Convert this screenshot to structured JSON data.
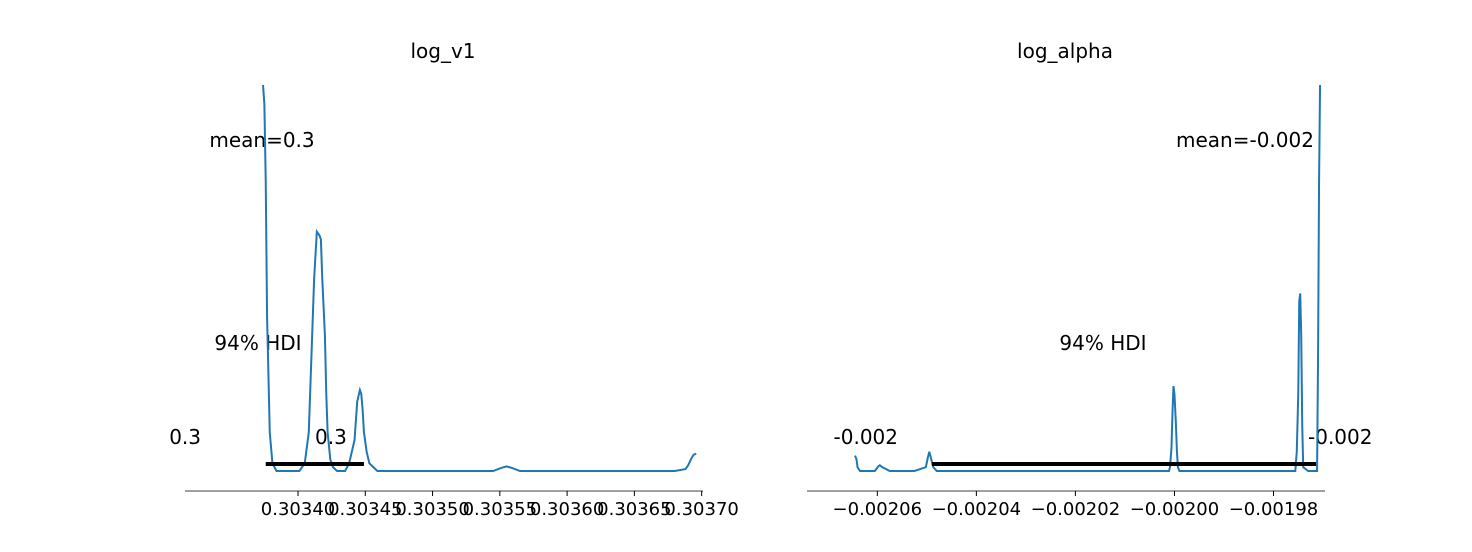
{
  "chart_data": [
    {
      "type": "line",
      "title": "log_v1",
      "mean_label": "mean=0.3",
      "hdi_label": "94% HDI",
      "hdi_low_label": "0.3",
      "hdi_high_label": "0.3",
      "hdi": [
        0.303376,
        0.303449
      ],
      "xlim": [
        0.303316,
        0.303701
      ],
      "x_ticks": [
        0.3034,
        0.30345,
        0.3035,
        0.30355,
        0.3036,
        0.30365,
        0.3037
      ],
      "x_tick_labels": [
        "0.30340",
        "0.30345",
        "0.30350",
        "0.30355",
        "0.30360",
        "0.30365",
        "0.30370"
      ],
      "series": [
        {
          "x": [
            0.303374,
            0.303375,
            0.303376,
            0.303377,
            0.303379,
            0.303381,
            0.303384,
            0.303387,
            0.30339,
            0.303393,
            0.303396,
            0.303399,
            0.303401,
            0.303405,
            0.303408,
            0.30341,
            0.303412,
            0.303414,
            0.303416,
            0.303417,
            0.303418,
            0.30342,
            0.303421,
            0.303422,
            0.303424,
            0.303426,
            0.303429,
            0.303432,
            0.303435,
            0.303438,
            0.303442,
            0.303444,
            0.303446,
            0.303447,
            0.303448,
            0.303449,
            0.303451,
            0.303453,
            0.303456,
            0.303459,
            0.303464,
            0.30348,
            0.3035,
            0.303515,
            0.30353,
            0.303545,
            0.303551,
            0.303555,
            0.303559,
            0.303565,
            0.30358,
            0.3036,
            0.30362,
            0.30364,
            0.30366,
            0.30368,
            0.303688,
            0.30369,
            0.303692,
            0.303694,
            0.303696
          ],
          "y": [
            1.0,
            0.95,
            0.75,
            0.4,
            0.1,
            0.02,
            0.0,
            0.0,
            0.0,
            0.0,
            0.0,
            0.0,
            0.0,
            0.02,
            0.1,
            0.3,
            0.5,
            0.62,
            0.61,
            0.6,
            0.5,
            0.35,
            0.2,
            0.1,
            0.03,
            0.01,
            0.0,
            0.0,
            0.0,
            0.02,
            0.08,
            0.18,
            0.21,
            0.2,
            0.16,
            0.1,
            0.05,
            0.02,
            0.01,
            0.0,
            0.0,
            0.0,
            0.0,
            0.0,
            0.0,
            0.0,
            0.008,
            0.012,
            0.008,
            0.0,
            0.0,
            0.0,
            0.0,
            0.0,
            0.0,
            0.0,
            0.005,
            0.015,
            0.03,
            0.042,
            0.045
          ]
        }
      ]
    },
    {
      "type": "line",
      "title": "log_alpha",
      "mean_label": "mean=-0.002",
      "hdi_label": "94% HDI",
      "hdi_low_label": "-0.002",
      "hdi_high_label": "-0.002",
      "hdi": [
        -0.002049,
        -0.0019714
      ],
      "xlim": [
        -0.0020742,
        -0.0019696
      ],
      "x_ticks": [
        -0.00206,
        -0.00204,
        -0.00202,
        -0.002,
        -0.00198
      ],
      "x_tick_labels": [
        "−0.00206",
        "−0.00204",
        "−0.00202",
        "−0.00200",
        "−0.00198"
      ],
      "series": [
        {
          "x": [
            -0.0020645,
            -0.0020642,
            -0.002064,
            -0.0020635,
            -0.002062,
            -0.0020605,
            -0.0020598,
            -0.0020595,
            -0.002059,
            -0.0020575,
            -0.002055,
            -0.0020525,
            -0.0020502,
            -0.0020498,
            -0.0020495,
            -0.0020492,
            -0.0020487,
            -0.002048,
            -0.002045,
            -0.00203,
            -0.00201,
            -0.0020011,
            -0.0020009,
            -0.0020006,
            -0.0020004,
            -0.0020002,
            -0.002,
            -0.0019997,
            -0.0019995,
            -0.0019993,
            -0.001999,
            -0.00199,
            -0.001988,
            -0.0019756,
            -0.0019753,
            -0.001975,
            -0.0019748,
            -0.0019746,
            -0.0019744,
            -0.0019742,
            -0.001974,
            -0.001973,
            -0.001972,
            -0.0019712,
            -0.001971,
            -0.0019708,
            -0.0019706
          ],
          "y": [
            0.04,
            0.03,
            0.01,
            0.0,
            0.0,
            0.0,
            0.012,
            0.015,
            0.01,
            0.0,
            0.0,
            0.0,
            0.01,
            0.035,
            0.05,
            0.035,
            0.01,
            0.0,
            0.0,
            0.0,
            0.0,
            0.0,
            0.01,
            0.06,
            0.15,
            0.22,
            0.2,
            0.12,
            0.05,
            0.01,
            0.0,
            0.0,
            0.0,
            0.0,
            0.05,
            0.2,
            0.44,
            0.46,
            0.35,
            0.12,
            0.01,
            0.0,
            0.0,
            0.0,
            0.3,
            0.75,
            1.0
          ]
        }
      ]
    }
  ]
}
